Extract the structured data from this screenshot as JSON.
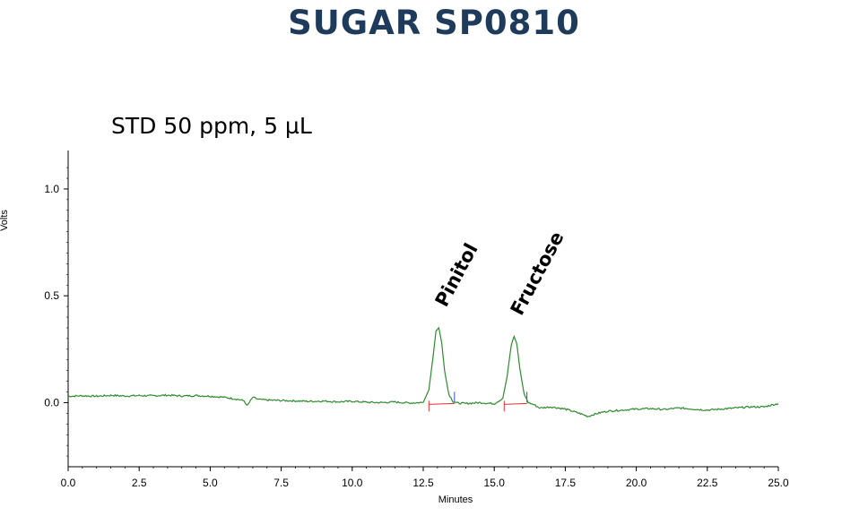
{
  "title": "SUGAR SP0810",
  "subtitle": "STD 50 ppm, 5 µL",
  "chart_data": {
    "type": "line",
    "xlabel": "Minutes",
    "ylabel": "Volts",
    "xlim": [
      0,
      25
    ],
    "ylim": [
      -0.3,
      1.18
    ],
    "x_ticks": [
      0.0,
      2.5,
      5.0,
      7.5,
      10.0,
      12.5,
      15.0,
      17.5,
      20.0,
      22.5,
      25.0
    ],
    "x_tick_labels": [
      "0.0",
      "2.5",
      "5.0",
      "7.5",
      "10.0",
      "12.5",
      "15.0",
      "17.5",
      "20.0",
      "22.5",
      "25.0"
    ],
    "y_ticks": [
      0.0,
      0.5,
      1.0
    ],
    "y_tick_labels": [
      "0.0",
      "0.5",
      "1.0"
    ],
    "grid": false,
    "line_color": "#2e8b2e",
    "series": [
      {
        "x": [
          0.0,
          0.5,
          1.0,
          1.5,
          2.0,
          2.5,
          3.0,
          3.5,
          4.0,
          4.5,
          5.0,
          5.5,
          6.0,
          6.2,
          6.3,
          6.5,
          6.7,
          7.0,
          7.5,
          8.0,
          8.5,
          9.0,
          9.5,
          10.0,
          10.5,
          11.0,
          11.5,
          12.0,
          12.5,
          12.7,
          12.85,
          12.95,
          13.05,
          13.15,
          13.25,
          13.4,
          13.55,
          13.7,
          14.0,
          14.5,
          15.0,
          15.3,
          15.45,
          15.6,
          15.7,
          15.8,
          15.9,
          16.05,
          16.2,
          16.4,
          16.6,
          17.0,
          17.5,
          18.0,
          18.3,
          18.5,
          18.8,
          19.0,
          19.5,
          20.0,
          20.5,
          21.0,
          21.5,
          22.0,
          22.5,
          23.0,
          23.5,
          24.0,
          24.5,
          24.8,
          25.0
        ],
        "y": [
          0.03,
          0.032,
          0.03,
          0.034,
          0.031,
          0.033,
          0.032,
          0.035,
          0.031,
          0.033,
          0.03,
          0.025,
          0.015,
          0.008,
          -0.015,
          0.025,
          0.015,
          0.012,
          0.01,
          0.008,
          0.006,
          0.007,
          0.004,
          0.006,
          0.002,
          0.0,
          0.003,
          -0.002,
          0.001,
          0.06,
          0.22,
          0.34,
          0.35,
          0.28,
          0.15,
          0.04,
          0.005,
          -0.002,
          -0.004,
          0.0,
          -0.005,
          0.02,
          0.12,
          0.27,
          0.31,
          0.27,
          0.16,
          0.04,
          0.0,
          -0.01,
          -0.025,
          -0.02,
          -0.03,
          -0.05,
          -0.065,
          -0.055,
          -0.045,
          -0.04,
          -0.035,
          -0.03,
          -0.028,
          -0.032,
          -0.025,
          -0.03,
          -0.035,
          -0.03,
          -0.025,
          -0.02,
          -0.02,
          -0.01,
          -0.005
        ]
      }
    ],
    "peaks": [
      {
        "name": "Pinitol",
        "retention_time": 13.05,
        "height": 0.35,
        "start": 12.7,
        "end": 13.6
      },
      {
        "name": "Fructose",
        "retention_time": 15.7,
        "height": 0.31,
        "start": 15.35,
        "end": 16.15
      }
    ]
  }
}
